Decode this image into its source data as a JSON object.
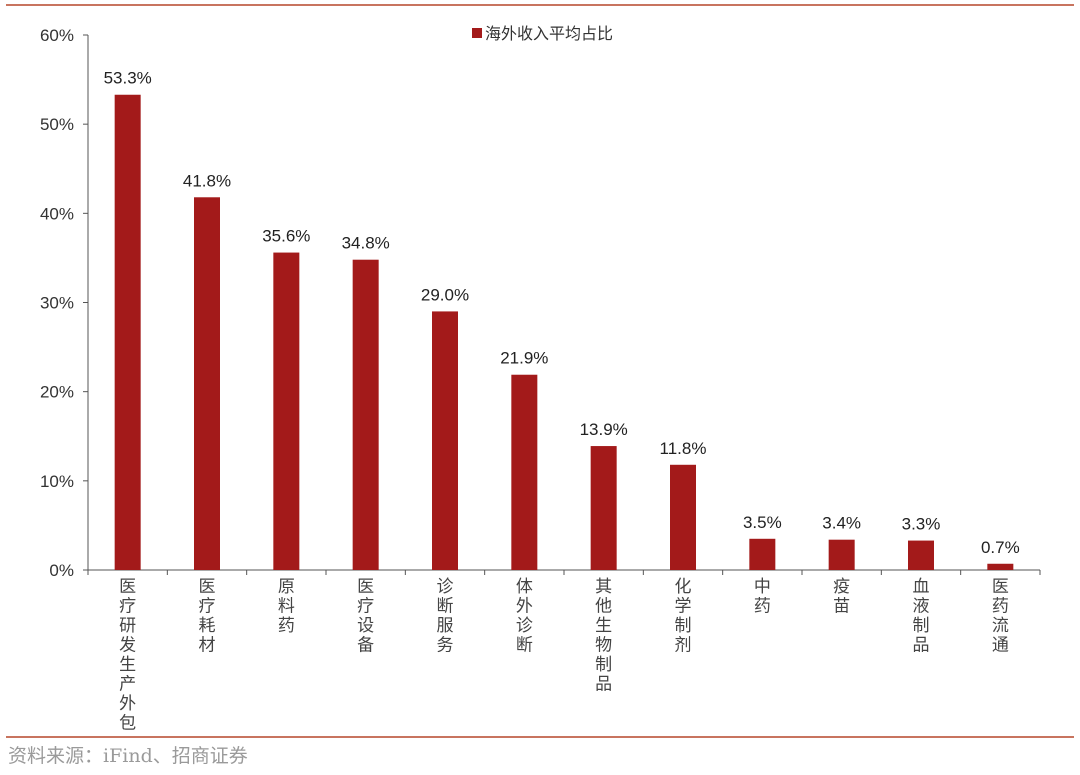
{
  "chart_data": {
    "type": "bar",
    "title": "",
    "legend": [
      "海外收入平均占比"
    ],
    "legend_position": "top-center",
    "categories": [
      "医疗研发生产外包",
      "医疗耗材",
      "原料药",
      "医疗设备",
      "诊断服务",
      "体外诊断",
      "其他生物制品",
      "化学制剂",
      "中药",
      "疫苗",
      "血液制品",
      "医药流通"
    ],
    "values": [
      53.3,
      41.8,
      35.6,
      34.8,
      29.0,
      21.9,
      13.9,
      11.8,
      3.5,
      3.4,
      3.3,
      0.7
    ],
    "data_labels": [
      "53.3%",
      "41.8%",
      "35.6%",
      "34.8%",
      "29.0%",
      "21.9%",
      "13.9%",
      "11.8%",
      "3.5%",
      "3.4%",
      "3.3%",
      "0.7%"
    ],
    "yticks": [
      "0%",
      "10%",
      "20%",
      "30%",
      "40%",
      "50%",
      "60%"
    ],
    "ylim": [
      0,
      60
    ],
    "xlabel": "",
    "ylabel": "",
    "grid": false,
    "bar_color": "#a31a1a"
  },
  "source": "资料来源：iFind、招商证券"
}
